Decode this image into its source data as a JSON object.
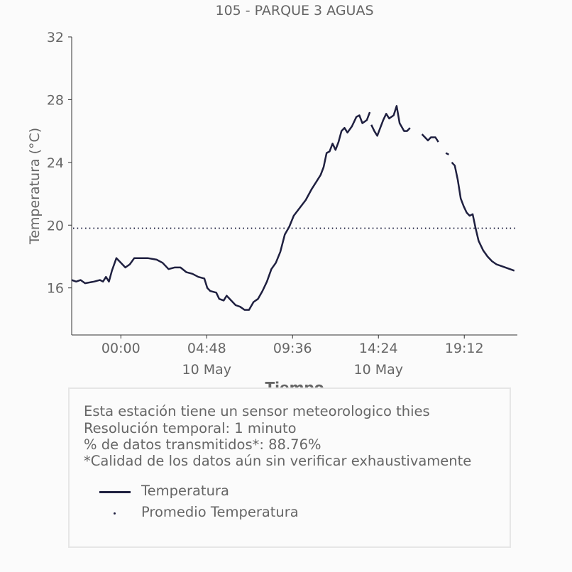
{
  "chart_data": {
    "type": "line",
    "title": "105 - PARQUE 3 AGUAS",
    "xlabel": "Tiempo",
    "ylabel": "Temperatura (°C)",
    "ylim": [
      13,
      32
    ],
    "yticks": [
      "16",
      "20",
      "24",
      "28",
      "32"
    ],
    "xlim": [
      "2024-05-09 21:15",
      "2024-05-10 22:10"
    ],
    "xticks": [
      {
        "t": "2024-05-10 00:00",
        "label": "00:00",
        "date": ""
      },
      {
        "t": "2024-05-10 04:48",
        "label": "04:48",
        "date": "10 May"
      },
      {
        "t": "2024-05-10 09:36",
        "label": "09:36",
        "date": ""
      },
      {
        "t": "2024-05-10 14:24",
        "label": "14:24",
        "date": "10 May"
      },
      {
        "t": "2024-05-10 19:12",
        "label": "19:12",
        "date": ""
      }
    ],
    "grid": false,
    "series": [
      {
        "name": "Temperatura",
        "color": "#1f2040",
        "style": "solid",
        "segments": [
          [
            [
              "2024-05-09 21:15",
              16.5
            ],
            [
              "2024-05-09 21:30",
              16.4
            ],
            [
              "2024-05-09 21:45",
              16.5
            ],
            [
              "2024-05-09 22:00",
              16.3
            ],
            [
              "2024-05-09 22:30",
              16.4
            ],
            [
              "2024-05-09 22:50",
              16.5
            ],
            [
              "2024-05-09 23:00",
              16.4
            ],
            [
              "2024-05-09 23:10",
              16.7
            ],
            [
              "2024-05-09 23:20",
              16.4
            ],
            [
              "2024-05-09 23:30",
              17.1
            ],
            [
              "2024-05-09 23:45",
              17.9
            ],
            [
              "2024-05-10 00:00",
              17.6
            ],
            [
              "2024-05-10 00:15",
              17.3
            ],
            [
              "2024-05-10 00:30",
              17.5
            ],
            [
              "2024-05-10 00:45",
              17.9
            ],
            [
              "2024-05-10 01:30",
              17.9
            ],
            [
              "2024-05-10 02:00",
              17.8
            ],
            [
              "2024-05-10 02:20",
              17.6
            ],
            [
              "2024-05-10 02:40",
              17.2
            ],
            [
              "2024-05-10 03:00",
              17.3
            ],
            [
              "2024-05-10 03:20",
              17.3
            ],
            [
              "2024-05-10 03:40",
              17.0
            ],
            [
              "2024-05-10 04:00",
              16.9
            ],
            [
              "2024-05-10 04:20",
              16.7
            ],
            [
              "2024-05-10 04:40",
              16.6
            ],
            [
              "2024-05-10 04:50",
              16.0
            ],
            [
              "2024-05-10 05:00",
              15.8
            ],
            [
              "2024-05-10 05:20",
              15.7
            ],
            [
              "2024-05-10 05:30",
              15.3
            ],
            [
              "2024-05-10 05:45",
              15.2
            ],
            [
              "2024-05-10 05:55",
              15.5
            ],
            [
              "2024-05-10 06:10",
              15.2
            ],
            [
              "2024-05-10 06:25",
              14.9
            ],
            [
              "2024-05-10 06:40",
              14.8
            ],
            [
              "2024-05-10 06:55",
              14.6
            ],
            [
              "2024-05-10 07:10",
              14.6
            ],
            [
              "2024-05-10 07:25",
              15.1
            ],
            [
              "2024-05-10 07:40",
              15.3
            ],
            [
              "2024-05-10 07:55",
              15.8
            ],
            [
              "2024-05-10 08:10",
              16.4
            ],
            [
              "2024-05-10 08:25",
              17.2
            ],
            [
              "2024-05-10 08:40",
              17.6
            ],
            [
              "2024-05-10 08:55",
              18.3
            ],
            [
              "2024-05-10 09:10",
              19.4
            ],
            [
              "2024-05-10 09:25",
              19.9
            ],
            [
              "2024-05-10 09:40",
              20.6
            ],
            [
              "2024-05-10 10:00",
              21.1
            ],
            [
              "2024-05-10 10:20",
              21.6
            ],
            [
              "2024-05-10 10:40",
              22.3
            ],
            [
              "2024-05-10 11:00",
              22.9
            ],
            [
              "2024-05-10 11:10",
              23.2
            ],
            [
              "2024-05-10 11:20",
              23.7
            ],
            [
              "2024-05-10 11:30",
              24.6
            ],
            [
              "2024-05-10 11:40",
              24.7
            ],
            [
              "2024-05-10 11:50",
              25.2
            ],
            [
              "2024-05-10 12:00",
              24.8
            ],
            [
              "2024-05-10 12:10",
              25.3
            ],
            [
              "2024-05-10 12:20",
              26.0
            ],
            [
              "2024-05-10 12:30",
              26.2
            ],
            [
              "2024-05-10 12:40",
              25.9
            ],
            [
              "2024-05-10 12:55",
              26.3
            ],
            [
              "2024-05-10 13:10",
              26.9
            ],
            [
              "2024-05-10 13:20",
              27.0
            ],
            [
              "2024-05-10 13:30",
              26.5
            ],
            [
              "2024-05-10 13:45",
              26.7
            ],
            [
              "2024-05-10 13:55",
              27.2
            ]
          ],
          [
            [
              "2024-05-10 14:00",
              26.4
            ],
            [
              "2024-05-10 14:10",
              26.0
            ],
            [
              "2024-05-10 14:20",
              25.7
            ],
            [
              "2024-05-10 14:30",
              26.2
            ],
            [
              "2024-05-10 14:40",
              26.7
            ],
            [
              "2024-05-10 14:50",
              27.1
            ],
            [
              "2024-05-10 15:00",
              26.8
            ],
            [
              "2024-05-10 15:15",
              27.0
            ],
            [
              "2024-05-10 15:25",
              27.6
            ],
            [
              "2024-05-10 15:35",
              26.5
            ],
            [
              "2024-05-10 15:50",
              26.0
            ],
            [
              "2024-05-10 16:00",
              26.0
            ],
            [
              "2024-05-10 16:10",
              26.2
            ]
          ],
          [
            [
              "2024-05-10 16:50",
              25.8
            ],
            [
              "2024-05-10 17:00",
              25.6
            ],
            [
              "2024-05-10 17:10",
              25.4
            ],
            [
              "2024-05-10 17:20",
              25.6
            ],
            [
              "2024-05-10 17:35",
              25.6
            ],
            [
              "2024-05-10 17:45",
              25.3
            ]
          ],
          [
            [
              "2024-05-10 18:10",
              24.6
            ],
            [
              "2024-05-10 18:20",
              24.5
            ]
          ],
          [
            [
              "2024-05-10 18:30",
              24.0
            ],
            [
              "2024-05-10 18:40",
              23.8
            ],
            [
              "2024-05-10 18:50",
              22.9
            ],
            [
              "2024-05-10 19:00",
              21.7
            ],
            [
              "2024-05-10 19:10",
              21.2
            ],
            [
              "2024-05-10 19:20",
              20.8
            ],
            [
              "2024-05-10 19:30",
              20.6
            ],
            [
              "2024-05-10 19:40",
              20.7
            ],
            [
              "2024-05-10 19:50",
              19.8
            ],
            [
              "2024-05-10 20:00",
              19.0
            ],
            [
              "2024-05-10 20:15",
              18.4
            ],
            [
              "2024-05-10 20:30",
              18.0
            ],
            [
              "2024-05-10 20:45",
              17.7
            ],
            [
              "2024-05-10 21:00",
              17.5
            ],
            [
              "2024-05-10 21:15",
              17.4
            ],
            [
              "2024-05-10 21:30",
              17.3
            ],
            [
              "2024-05-10 21:45",
              17.2
            ],
            [
              "2024-05-10 22:00",
              17.1
            ]
          ]
        ]
      },
      {
        "name": "Promedio Temperatura",
        "color": "#1f2040",
        "style": "dotted",
        "value": 19.8
      }
    ],
    "legend": [
      "Temperatura",
      "Promedio Temperatura"
    ]
  },
  "info": {
    "lines": [
      "Esta estación tiene un sensor meteorologico thies",
      "Resolución temporal: 1 minuto",
      "% de datos transmitidos*: 88.76%",
      "*Calidad de los datos aún sin verificar exhaustivamente"
    ]
  }
}
